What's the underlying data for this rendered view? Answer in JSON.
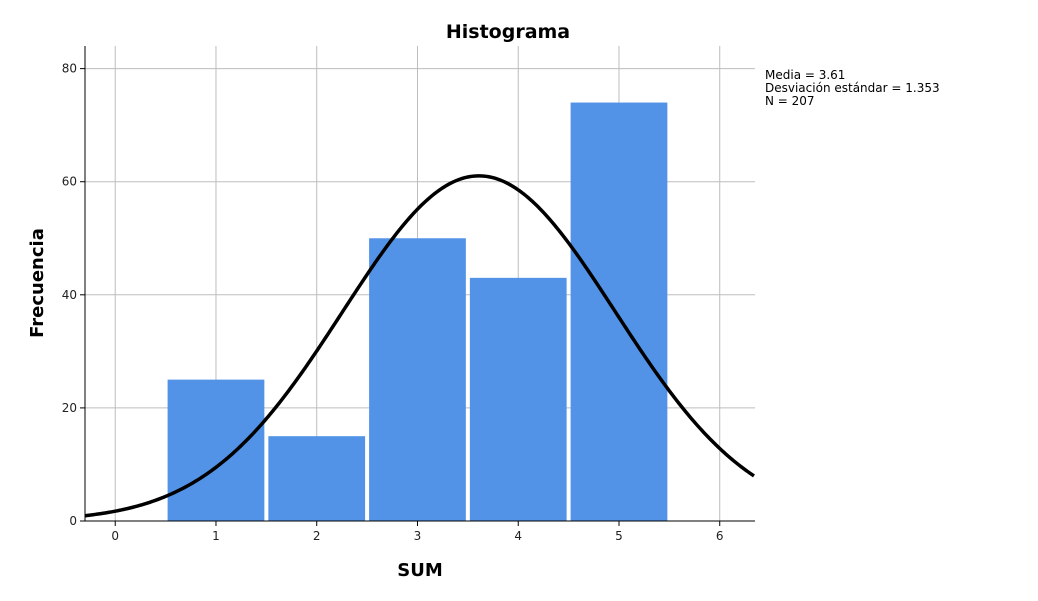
{
  "chart_data": {
    "type": "bar",
    "title": "Histograma",
    "xlabel": "SUM",
    "ylabel": "Frecuencia",
    "categories": [
      "1",
      "2",
      "3",
      "4",
      "5"
    ],
    "x": [
      1,
      2,
      3,
      4,
      5
    ],
    "values": [
      25,
      15,
      50,
      43,
      74
    ],
    "xlim": [
      -0.3,
      6.35
    ],
    "ylim": [
      0,
      84
    ],
    "xticks": [
      "0",
      "1",
      "2",
      "3",
      "4",
      "5",
      "6"
    ],
    "yticks": [
      "0",
      "20",
      "40",
      "60",
      "80"
    ],
    "grid": true,
    "bar_color": "#5293e8",
    "normal_curve": {
      "mean": 3.61,
      "std": 1.353,
      "n": 207,
      "color": "#000000"
    },
    "stats": [
      "Media = 3.61",
      "Desviación estándar = 1.353",
      "N = 207"
    ]
  }
}
